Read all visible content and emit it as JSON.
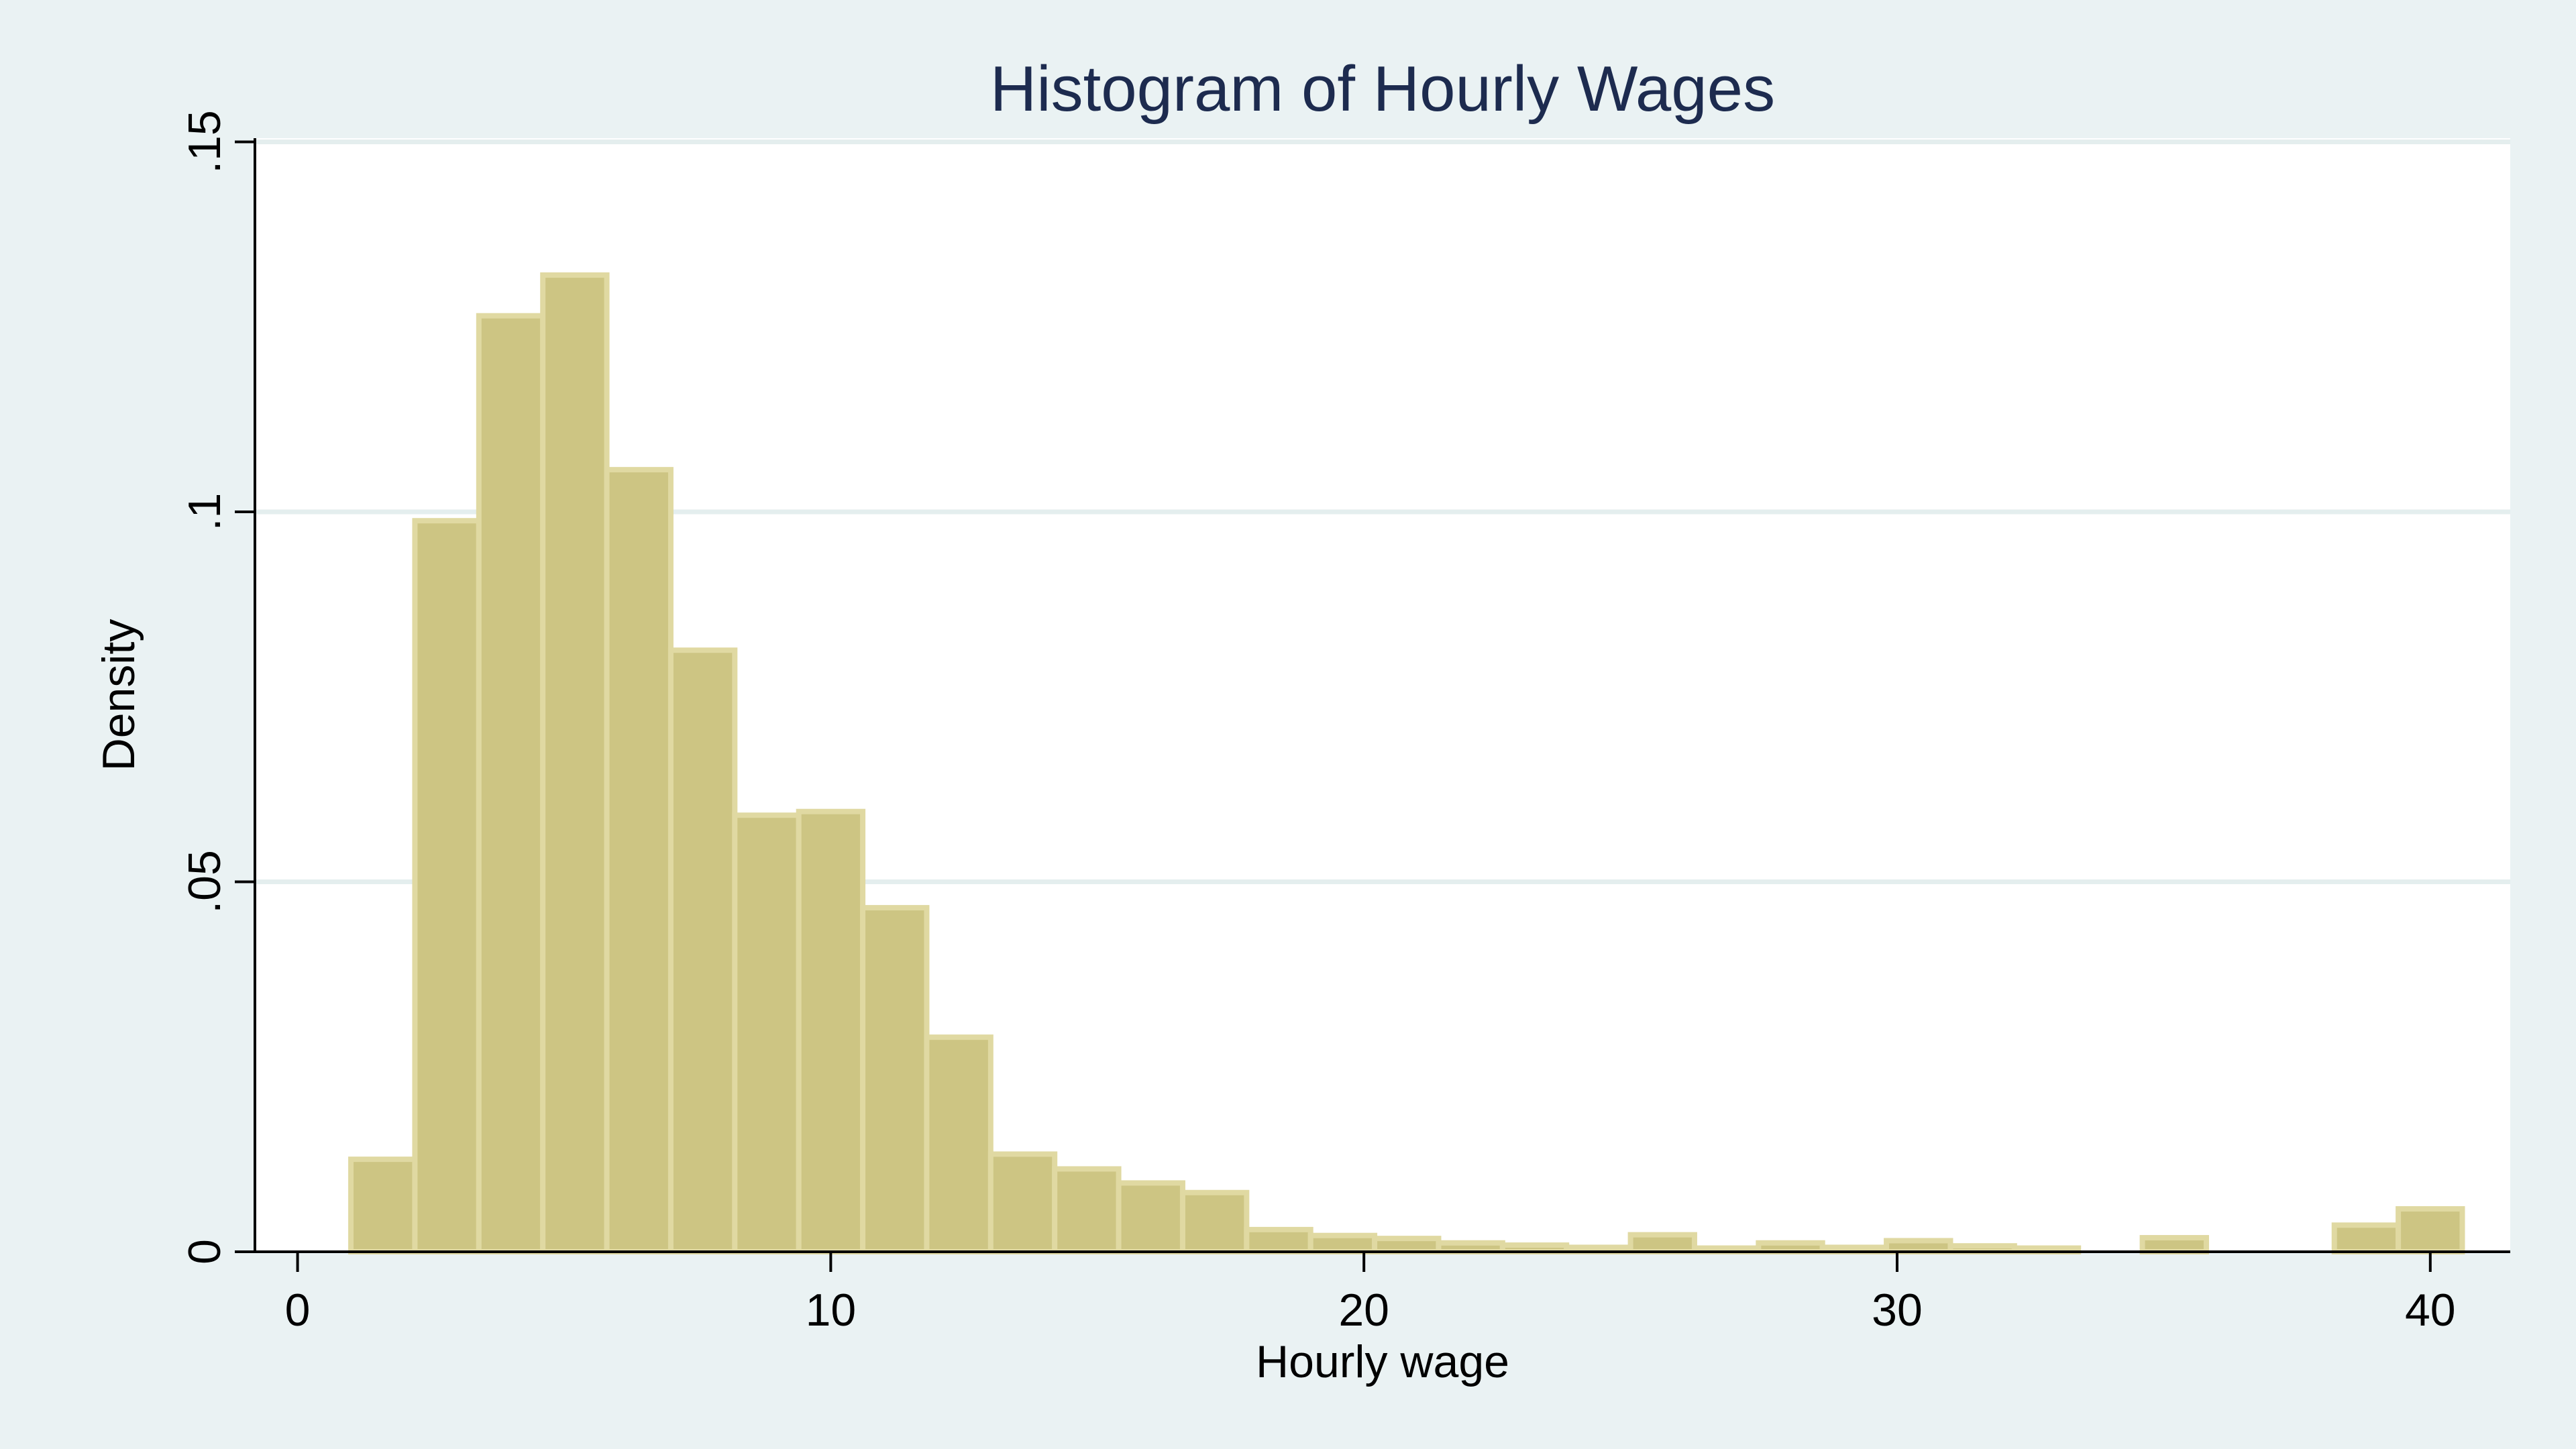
{
  "chart_data": {
    "type": "bar",
    "title": "Histogram of Hourly Wages",
    "xlabel": "Hourly wage",
    "ylabel": "Density",
    "xlim": [
      -0.8,
      41.5
    ],
    "ylim": [
      0,
      0.1505
    ],
    "x_ticks": [
      {
        "value": 0,
        "label": "0"
      },
      {
        "value": 10,
        "label": "10"
      },
      {
        "value": 20,
        "label": "20"
      },
      {
        "value": 30,
        "label": "30"
      },
      {
        "value": 40,
        "label": "40"
      }
    ],
    "y_ticks": [
      {
        "value": 0,
        "label": "0"
      },
      {
        "value": 0.05,
        "label": ".05"
      },
      {
        "value": 0.1,
        "label": ".1"
      },
      {
        "value": 0.15,
        "label": ".15"
      }
    ],
    "grid": "horizontal",
    "bin_width": 1.2,
    "bins": [
      {
        "start": 1.0,
        "density": 0.0125
      },
      {
        "start": 2.2,
        "density": 0.0988
      },
      {
        "start": 3.4,
        "density": 0.1265
      },
      {
        "start": 4.6,
        "density": 0.132
      },
      {
        "start": 5.8,
        "density": 0.1057
      },
      {
        "start": 7.0,
        "density": 0.0813
      },
      {
        "start": 8.2,
        "density": 0.059
      },
      {
        "start": 9.4,
        "density": 0.0595
      },
      {
        "start": 10.6,
        "density": 0.0465
      },
      {
        "start": 11.8,
        "density": 0.029
      },
      {
        "start": 13.0,
        "density": 0.0132
      },
      {
        "start": 14.2,
        "density": 0.0112
      },
      {
        "start": 15.4,
        "density": 0.0093
      },
      {
        "start": 16.6,
        "density": 0.008
      },
      {
        "start": 17.8,
        "density": 0.003
      },
      {
        "start": 19.0,
        "density": 0.0022
      },
      {
        "start": 20.2,
        "density": 0.0018
      },
      {
        "start": 21.4,
        "density": 0.0012
      },
      {
        "start": 22.6,
        "density": 0.0009
      },
      {
        "start": 23.8,
        "density": 0.0006
      },
      {
        "start": 25.0,
        "density": 0.0023
      },
      {
        "start": 26.2,
        "density": 0.0005
      },
      {
        "start": 27.4,
        "density": 0.0012
      },
      {
        "start": 28.6,
        "density": 0.0006
      },
      {
        "start": 29.8,
        "density": 0.0015
      },
      {
        "start": 31.0,
        "density": 0.0008
      },
      {
        "start": 32.2,
        "density": 0.0005
      },
      {
        "start": 34.6,
        "density": 0.0019
      },
      {
        "start": 38.2,
        "density": 0.0036
      },
      {
        "start": 39.4,
        "density": 0.0058
      }
    ],
    "colors": {
      "background": "#eaf2f3",
      "plot_background": "#ffffff",
      "bar_fill": "#cdc583",
      "bar_edge": "#e0d9a2",
      "gridline": "#e4eeee",
      "axis": "#000000",
      "title": "#1d2b4f",
      "text": "#000000"
    }
  }
}
